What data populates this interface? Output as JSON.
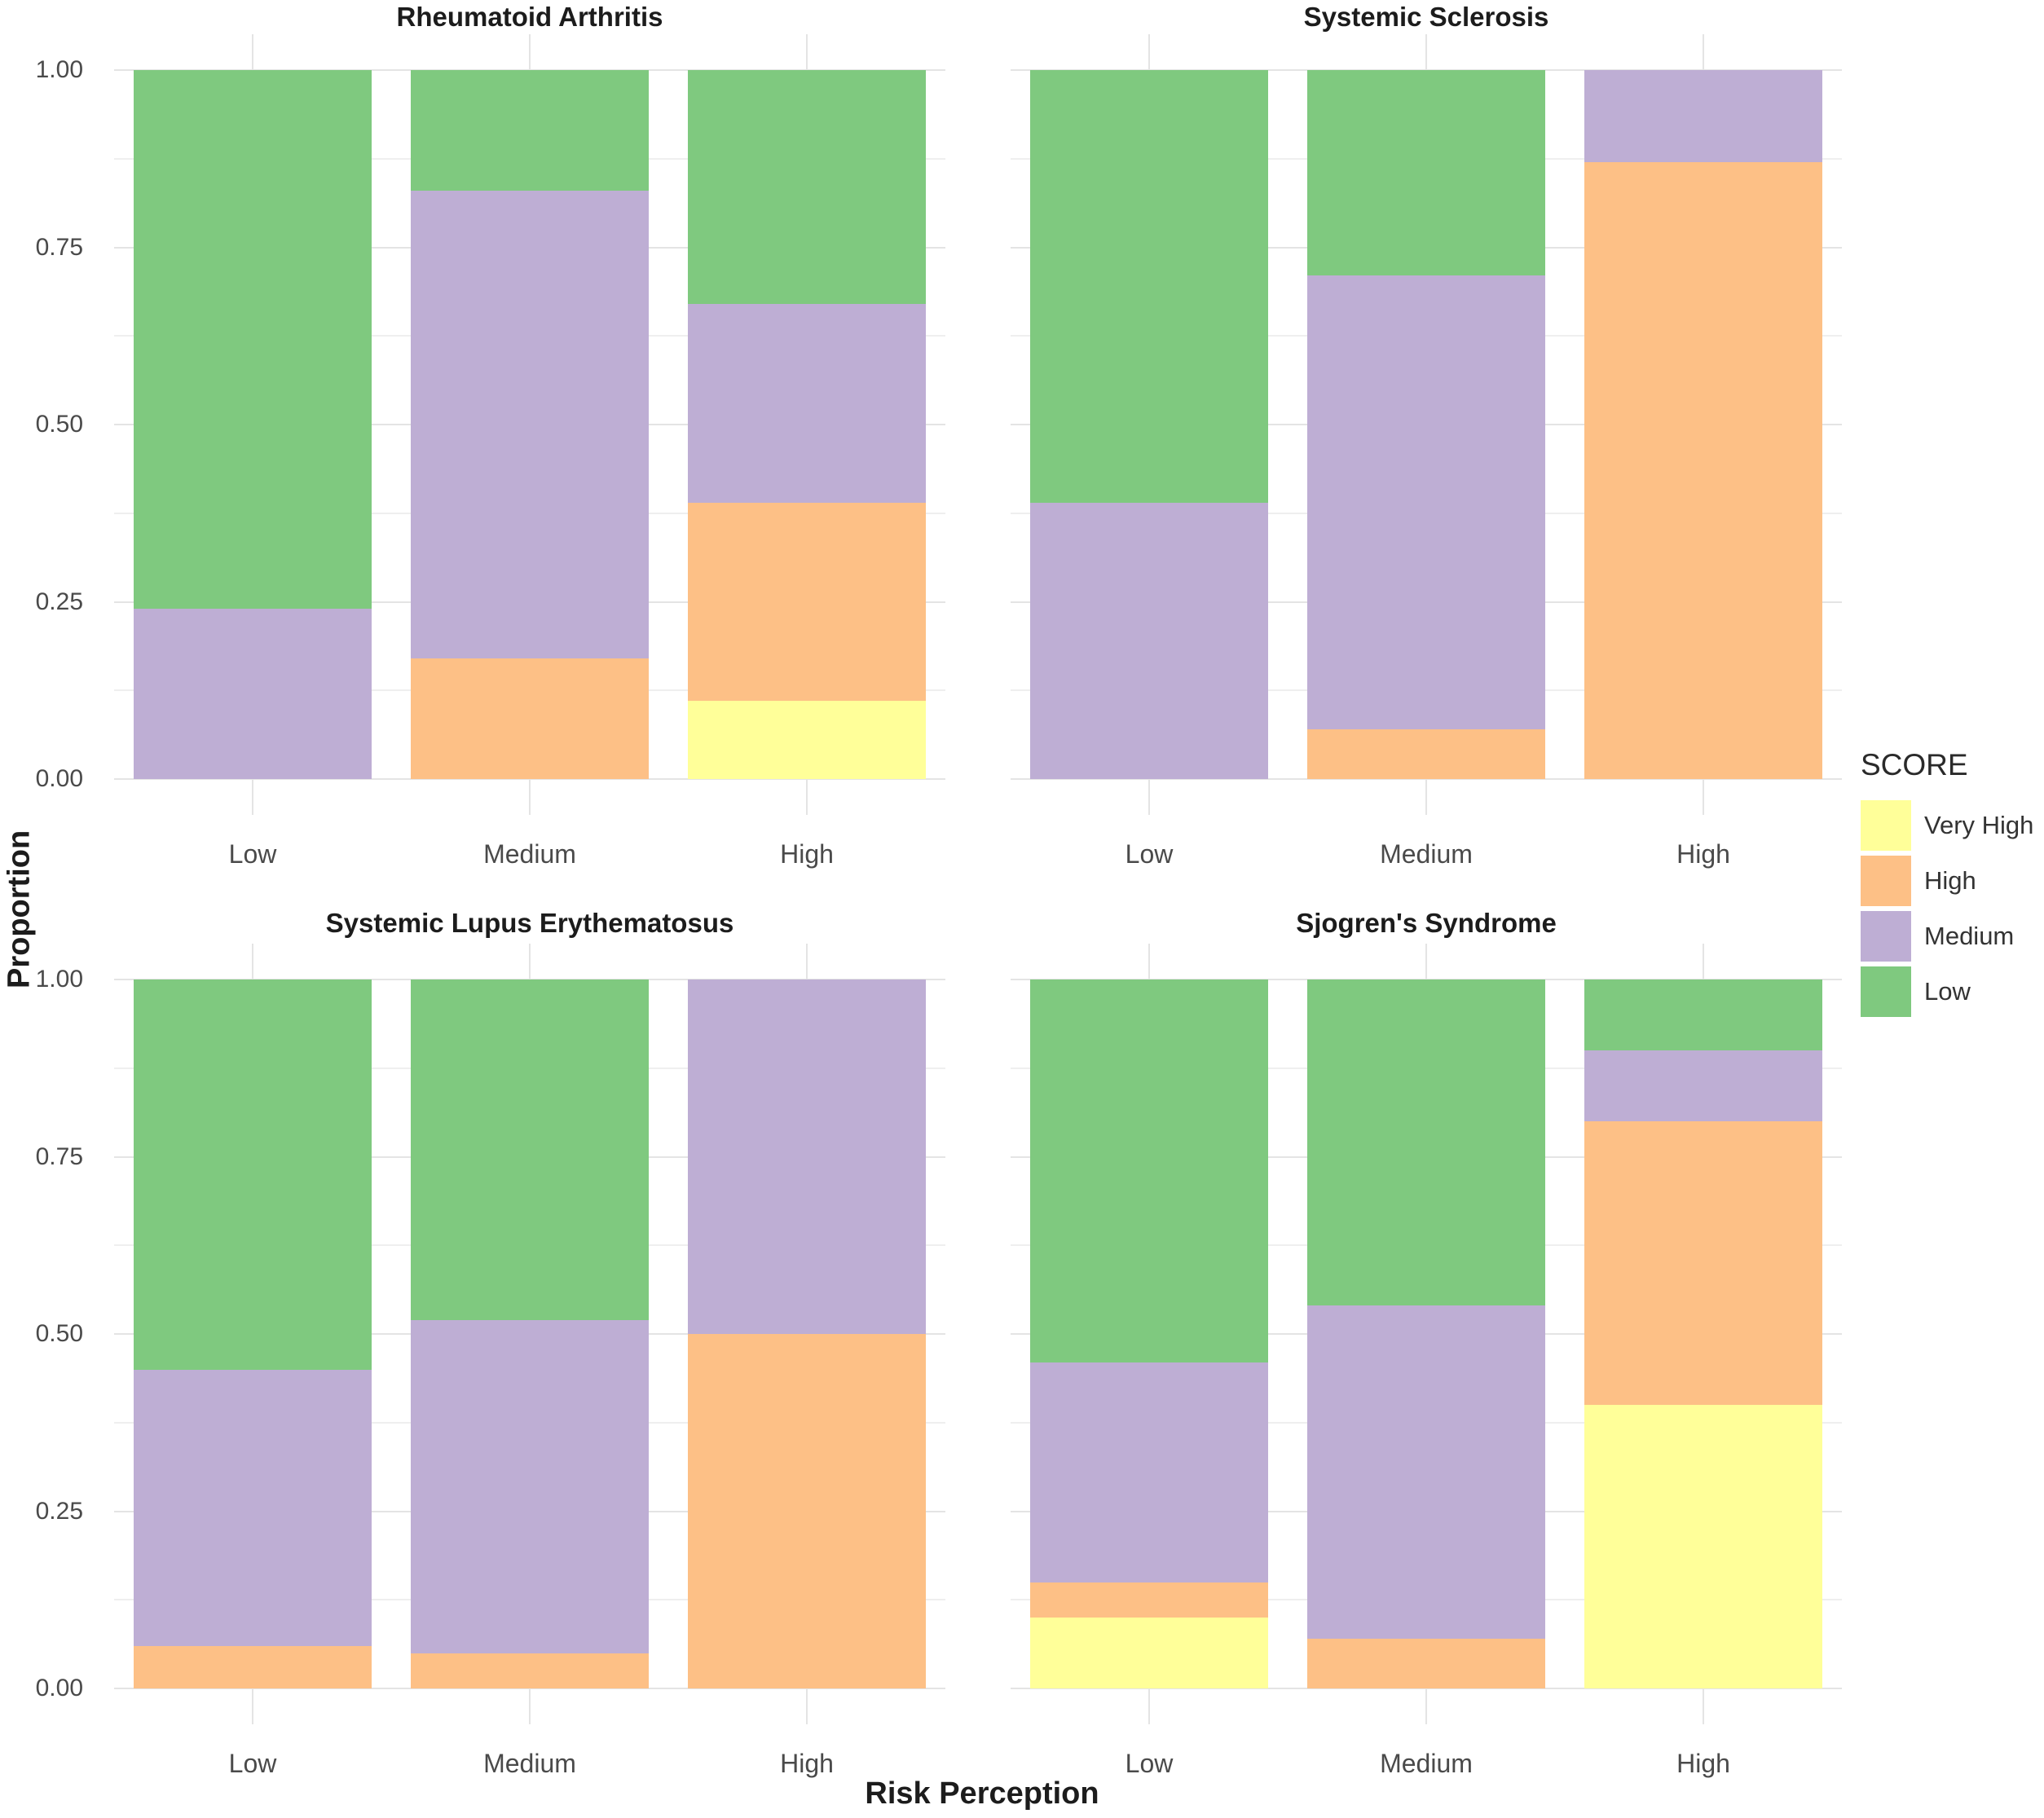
{
  "figure": {
    "ylabel": "Proportion",
    "xlabel": "Risk Perception",
    "y_ticks": [
      "1.00",
      "0.75",
      "0.50",
      "0.25",
      "0.00"
    ],
    "x_categories": [
      "Low",
      "Medium",
      "High"
    ],
    "legend": {
      "title": "SCORE",
      "items": [
        {
          "label": "Very High",
          "color": "#FFFF99"
        },
        {
          "label": "High",
          "color": "#FDC086"
        },
        {
          "label": "Medium",
          "color": "#BEAED4"
        },
        {
          "label": "Low",
          "color": "#7FC97F"
        }
      ]
    }
  },
  "chart_data": {
    "type": "bar",
    "variant": "stacked-proportion",
    "title": "",
    "xlabel": "Risk Perception",
    "ylabel": "Proportion",
    "ylim": [
      0,
      1
    ],
    "grid": true,
    "legend_position": "right",
    "legend_title": "SCORE",
    "stack_order_bottom_to_top": [
      "Very High",
      "High",
      "Medium",
      "Low"
    ],
    "series_colors": {
      "Very High": "#FFFF99",
      "High": "#FDC086",
      "Medium": "#BEAED4",
      "Low": "#7FC97F"
    },
    "categories": [
      "Low",
      "Medium",
      "High"
    ],
    "facets": [
      {
        "title": "Rheumatoid Arthritis",
        "row": 0,
        "col": 0,
        "bars": [
          {
            "category": "Low",
            "values": {
              "Very High": 0,
              "High": 0,
              "Medium": 0.24,
              "Low": 0.76
            }
          },
          {
            "category": "Medium",
            "values": {
              "Very High": 0,
              "High": 0.17,
              "Medium": 0.66,
              "Low": 0.17
            }
          },
          {
            "category": "High",
            "values": {
              "Very High": 0.11,
              "High": 0.28,
              "Medium": 0.28,
              "Low": 0.33
            }
          }
        ]
      },
      {
        "title": "Systemic Sclerosis",
        "row": 0,
        "col": 1,
        "bars": [
          {
            "category": "Low",
            "values": {
              "Very High": 0,
              "High": 0,
              "Medium": 0.39,
              "Low": 0.61
            }
          },
          {
            "category": "Medium",
            "values": {
              "Very High": 0,
              "High": 0.07,
              "Medium": 0.64,
              "Low": 0.29
            }
          },
          {
            "category": "High",
            "values": {
              "Very High": 0,
              "High": 0.87,
              "Medium": 0.13,
              "Low": 0
            }
          }
        ]
      },
      {
        "title": "Systemic Lupus Erythematosus",
        "row": 1,
        "col": 0,
        "bars": [
          {
            "category": "Low",
            "values": {
              "Very High": 0,
              "High": 0.06,
              "Medium": 0.39,
              "Low": 0.55
            }
          },
          {
            "category": "Medium",
            "values": {
              "Very High": 0,
              "High": 0.05,
              "Medium": 0.47,
              "Low": 0.48
            }
          },
          {
            "category": "High",
            "values": {
              "Very High": 0,
              "High": 0.5,
              "Medium": 0.5,
              "Low": 0
            }
          }
        ]
      },
      {
        "title": "Sjogren's Syndrome",
        "row": 1,
        "col": 1,
        "bars": [
          {
            "category": "Low",
            "values": {
              "Very High": 0.1,
              "High": 0.05,
              "Medium": 0.31,
              "Low": 0.54
            }
          },
          {
            "category": "Medium",
            "values": {
              "Very High": 0,
              "High": 0.07,
              "Medium": 0.47,
              "Low": 0.46
            }
          },
          {
            "category": "High",
            "values": {
              "Very High": 0.4,
              "High": 0.4,
              "Medium": 0.1,
              "Low": 0.1
            }
          }
        ]
      }
    ]
  }
}
